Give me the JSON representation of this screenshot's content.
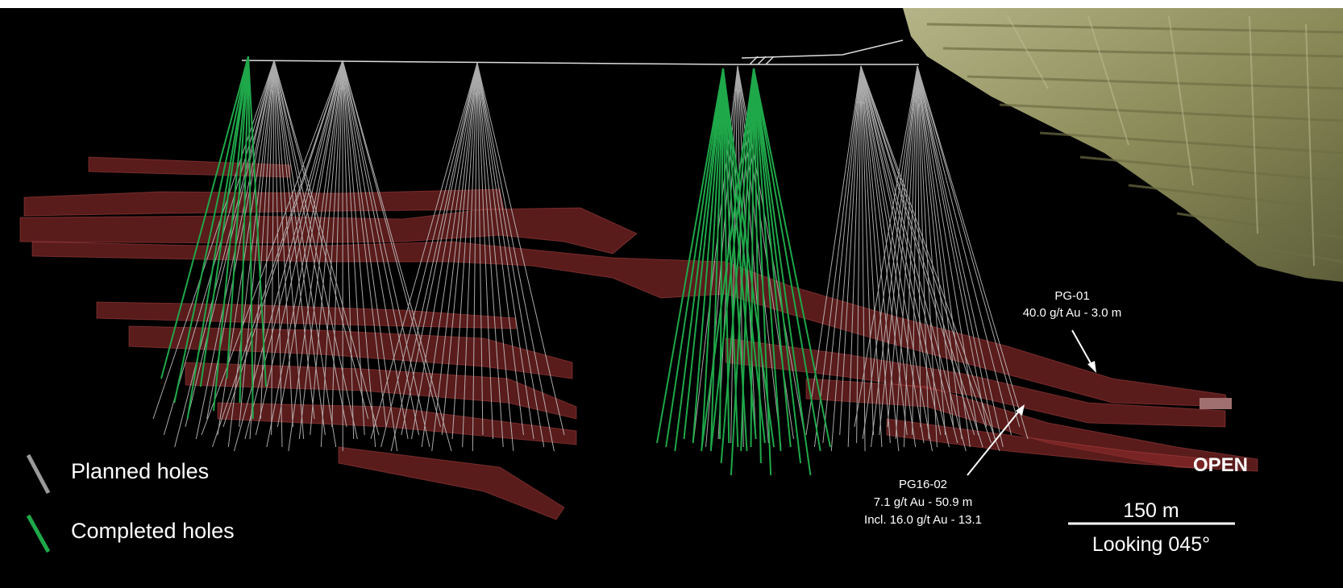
{
  "colors": {
    "background": "#000000",
    "planned_hole": "#c8c8c8",
    "completed_hole": "#1fa84a",
    "vein": "#8a2a2a",
    "pit": "#8c8c5a",
    "text": "#ffffff"
  },
  "legend": {
    "planned_label": "Planned holes",
    "completed_label": "Completed holes",
    "planned_icon": "gray-line-icon",
    "completed_icon": "green-line-icon"
  },
  "annotations": {
    "pg01": {
      "name": "PG-01",
      "grade": "40.0 g/t Au - 3.0 m"
    },
    "pg1602": {
      "name": "PG16-02",
      "grade": "7.1 g/t Au - 50.9 m",
      "incl": "Incl. 16.0 g/t Au - 13.1"
    },
    "open_label": "OPEN"
  },
  "scale_bar": {
    "distance": "150 m",
    "direction": "Looking 045°"
  }
}
